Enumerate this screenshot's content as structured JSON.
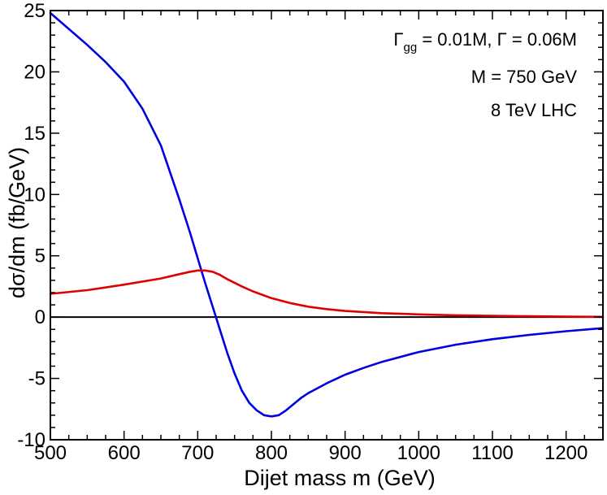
{
  "chart_data": {
    "type": "line",
    "xlabel": "Dijet mass m  (GeV)",
    "ylabel": "dσ/dm   (fb/GeV)",
    "xlim": [
      500,
      1250
    ],
    "ylim": [
      -10,
      25
    ],
    "x_ticks": [
      500,
      600,
      700,
      800,
      900,
      1000,
      1100,
      1200
    ],
    "y_ticks": [
      -10,
      -5,
      0,
      5,
      10,
      15,
      20,
      25
    ],
    "x_tick_labels": [
      "500",
      "600",
      "700",
      "800",
      "900",
      "1000",
      "1100",
      "1200"
    ],
    "y_tick_labels": [
      "-10",
      "-5",
      "0",
      "5",
      "10",
      "15",
      "20",
      "25"
    ],
    "reference_line": {
      "y": 0,
      "color": "#000000"
    },
    "annotations": {
      "widths_prefix": "Γ",
      "widths_sub": "gg",
      "widths_rest": " = 0.01M,  Γ = 0.06M",
      "mass": "M = 750 GeV",
      "collider": "8 TeV LHC"
    },
    "series": [
      {
        "name": "blue",
        "color": "#0000e0",
        "x": [
          500,
          525,
          550,
          575,
          600,
          625,
          650,
          675,
          690,
          700,
          710,
          720,
          730,
          740,
          750,
          760,
          770,
          780,
          790,
          800,
          810,
          820,
          830,
          840,
          850,
          875,
          900,
          925,
          950,
          1000,
          1050,
          1100,
          1150,
          1200,
          1250
        ],
        "y": [
          24.8,
          23.5,
          22.2,
          20.8,
          19.2,
          17.0,
          14.0,
          9.6,
          6.8,
          4.8,
          2.8,
          0.9,
          -1.0,
          -2.9,
          -4.6,
          -6.0,
          -7.0,
          -7.6,
          -8.0,
          -8.1,
          -8.0,
          -7.6,
          -7.1,
          -6.6,
          -6.2,
          -5.4,
          -4.7,
          -4.15,
          -3.65,
          -2.85,
          -2.25,
          -1.8,
          -1.45,
          -1.15,
          -0.9
        ]
      },
      {
        "name": "red",
        "color": "#e00000",
        "x": [
          500,
          550,
          600,
          650,
          675,
          690,
          700,
          710,
          720,
          730,
          740,
          750,
          760,
          775,
          800,
          825,
          850,
          875,
          900,
          950,
          1000,
          1050,
          1100,
          1150,
          1200,
          1250
        ],
        "y": [
          1.9,
          2.2,
          2.65,
          3.15,
          3.5,
          3.7,
          3.8,
          3.8,
          3.7,
          3.45,
          3.1,
          2.8,
          2.5,
          2.1,
          1.55,
          1.15,
          0.85,
          0.65,
          0.5,
          0.32,
          0.22,
          0.15,
          0.1,
          0.07,
          0.04,
          0.02
        ]
      }
    ]
  }
}
